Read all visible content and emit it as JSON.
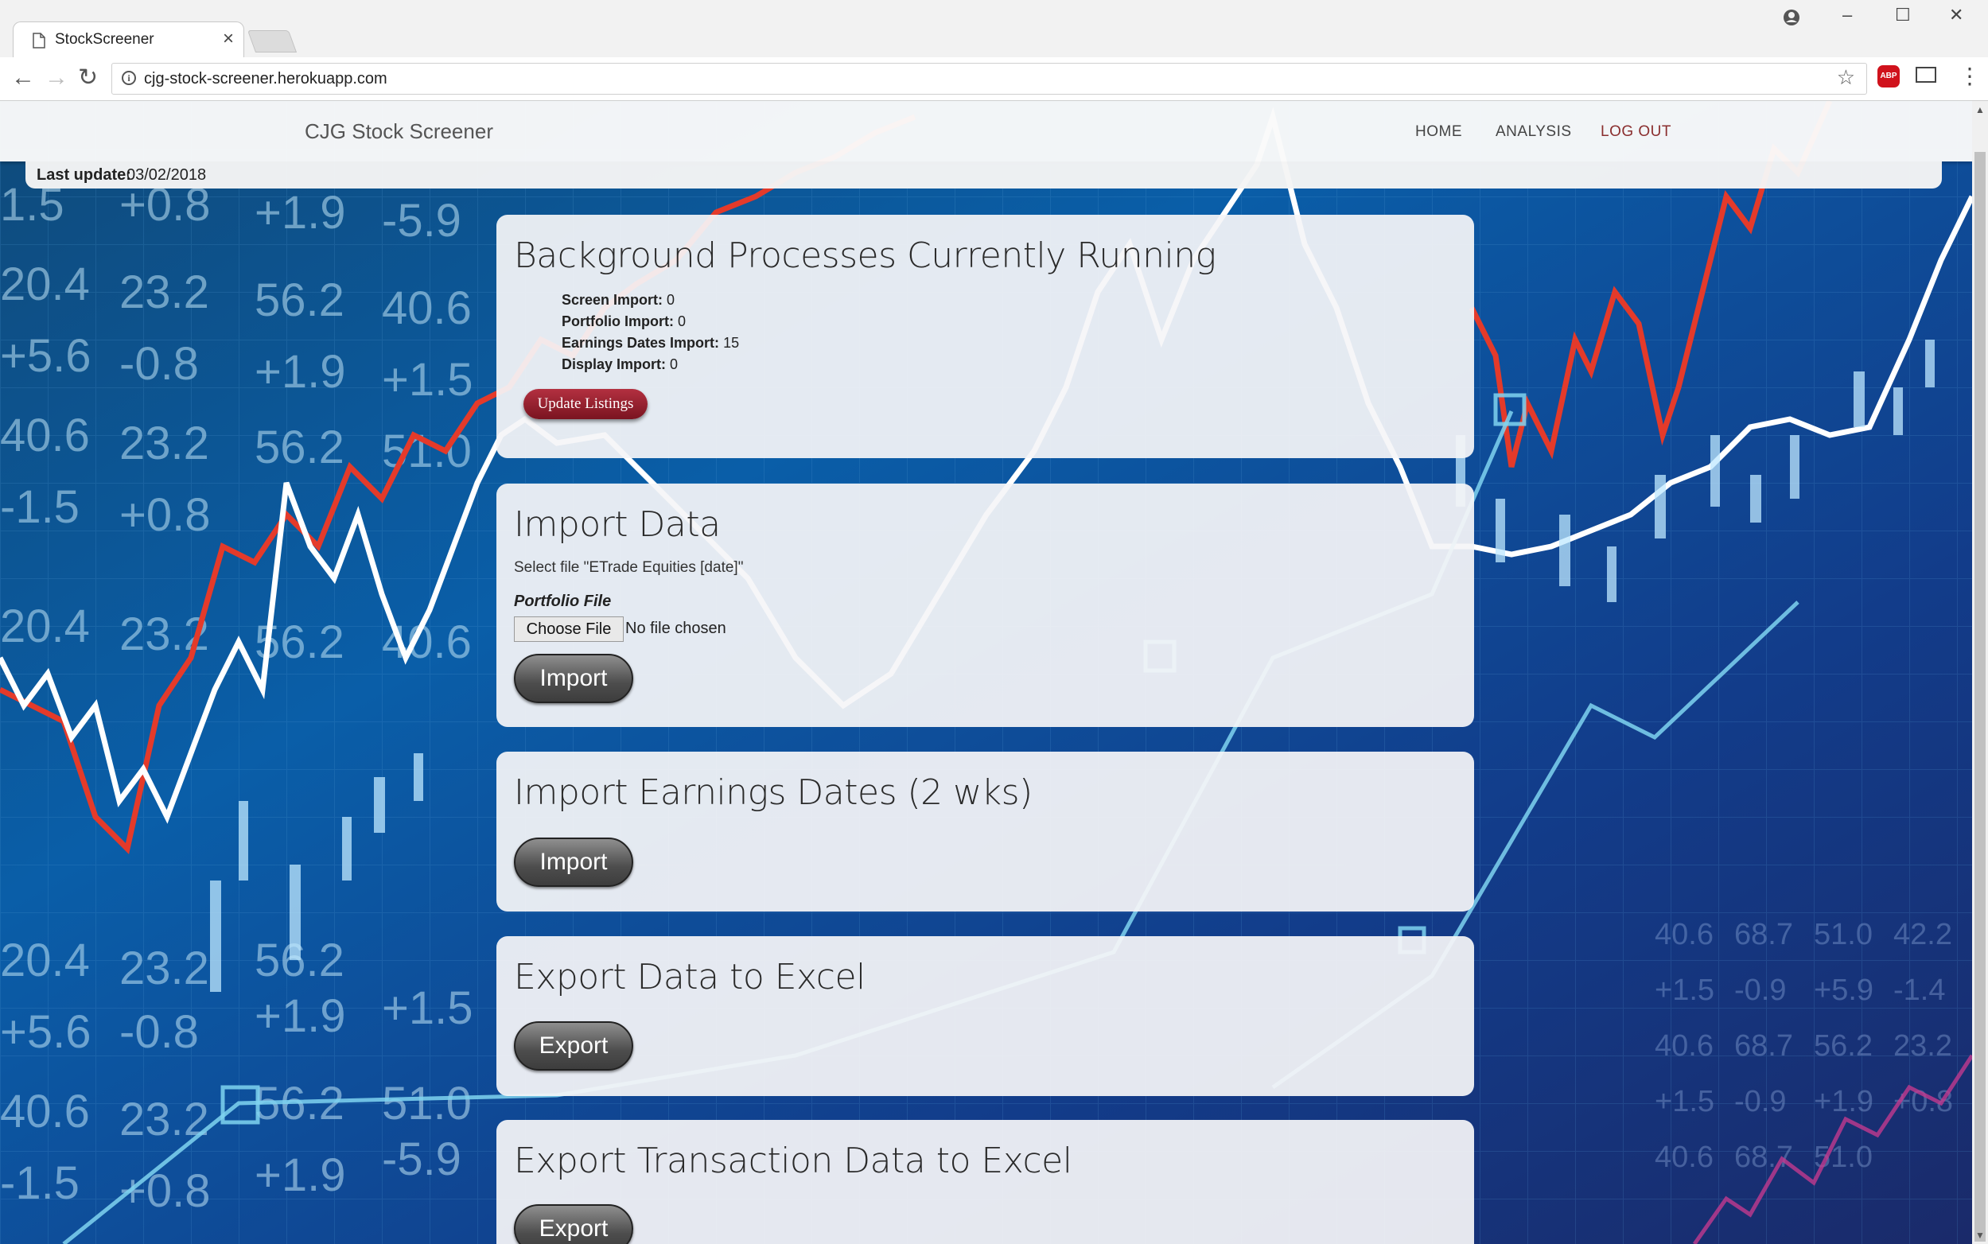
{
  "browser": {
    "tab_title": "StockScreener",
    "tab_close": "×",
    "url": "cjg-stock-screener.herokuapp.com",
    "back": "←",
    "forward": "→",
    "reload": "↻",
    "star": "☆",
    "abp_label": "ABP",
    "menu": "⋮",
    "window_controls": [
      "–",
      "☐",
      "✕"
    ]
  },
  "app": {
    "brand": "CJG Stock Screener",
    "nav": [
      "HOME",
      "ANALYSIS",
      "LOG OUT"
    ],
    "last_update_label": "Last update:",
    "last_update_value": "03/02/2018"
  },
  "cards": {
    "background": {
      "title": "Background Processes Currently Running",
      "processes": [
        {
          "label": "Screen Import:",
          "value": "0"
        },
        {
          "label": "Portfolio Import:",
          "value": "0"
        },
        {
          "label": "Earnings Dates Import:",
          "value": "15"
        },
        {
          "label": "Display Import:",
          "value": "0"
        }
      ],
      "button": "Update Listings"
    },
    "import_data": {
      "title": "Import Data",
      "hint": "Select file \"ETrade Equities [date]\"",
      "field_label": "Portfolio File",
      "choose_button": "Choose File",
      "no_file": "No file chosen",
      "button": "Import"
    },
    "earnings": {
      "title": "Import Earnings Dates (2 wks)",
      "button": "Import"
    },
    "export": {
      "title": "Export Data to Excel",
      "button": "Export"
    },
    "export_tx": {
      "title": "Export Transaction Data to Excel",
      "button": "Export"
    }
  },
  "colors": {
    "accent_red": "#8a2e2e",
    "background_blue": "#0b2a5c"
  }
}
